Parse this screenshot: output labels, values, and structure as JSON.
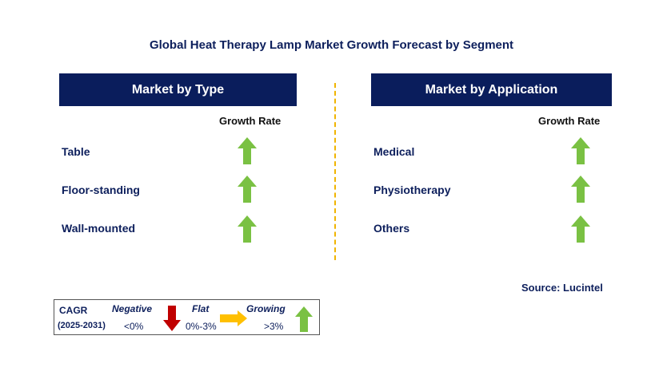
{
  "title": "Global Heat Therapy Lamp Market Growth Forecast by Segment",
  "left_panel": {
    "header": "Market by Type",
    "growth_rate_label": "Growth Rate",
    "items": [
      {
        "label": "Table",
        "trend": "growing"
      },
      {
        "label": "Floor-standing",
        "trend": "growing"
      },
      {
        "label": "Wall-mounted",
        "trend": "growing"
      }
    ]
  },
  "right_panel": {
    "header": "Market by Application",
    "growth_rate_label": "Growth Rate",
    "items": [
      {
        "label": "Medical",
        "trend": "growing"
      },
      {
        "label": "Physiotherapy",
        "trend": "growing"
      },
      {
        "label": "Others",
        "trend": "growing"
      }
    ]
  },
  "source": "Source: Lucintel",
  "legend": {
    "cagr": "CAGR",
    "period": "(2025-2031)",
    "negative_label": "Negative",
    "negative_range": "<0%",
    "flat_label": "Flat",
    "flat_range": "0%-3%",
    "growing_label": "Growing",
    "growing_range": ">3%"
  },
  "colors": {
    "header_bg": "#0a1d5c",
    "text": "#0d1f5c",
    "growing_arrow": "#7ac143",
    "negative_arrow": "#c00000",
    "flat_arrow": "#ffc000",
    "divider": "#f0b400"
  }
}
